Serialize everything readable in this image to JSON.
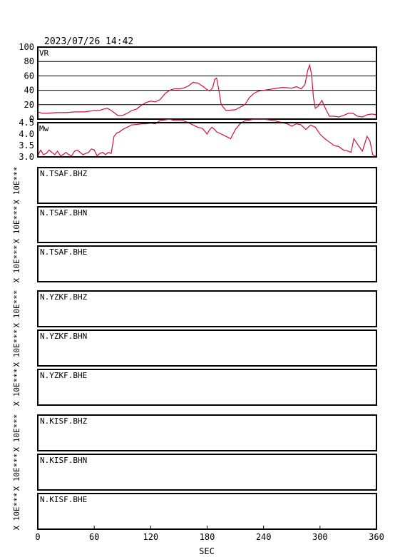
{
  "header": {
    "timestamp": "2023/07/26  14:42"
  },
  "chart_data": [
    {
      "type": "line",
      "panel": "VR",
      "label": "VR",
      "ylim": [
        0,
        100
      ],
      "yticks": [
        "0",
        "20",
        "40",
        "60",
        "80",
        "100"
      ],
      "grid": true,
      "color": "#d0103a",
      "x": [
        0,
        5,
        10,
        20,
        30,
        40,
        50,
        55,
        60,
        65,
        70,
        74,
        78,
        82,
        85,
        90,
        95,
        100,
        105,
        110,
        115,
        120,
        125,
        130,
        135,
        140,
        145,
        150,
        155,
        160,
        165,
        170,
        175,
        180,
        183,
        186,
        188,
        190,
        192,
        195,
        200,
        210,
        220,
        225,
        230,
        235,
        240,
        250,
        260,
        270,
        275,
        280,
        284,
        287,
        289,
        291,
        293,
        295,
        298,
        302,
        306,
        310,
        315,
        320,
        325,
        330,
        335,
        340,
        345,
        350,
        355,
        360
      ],
      "values": [
        10,
        8,
        8,
        9,
        9,
        10,
        10,
        11,
        12,
        12,
        14,
        15,
        12,
        8,
        5,
        5,
        8,
        12,
        14,
        19,
        23,
        25,
        24,
        27,
        35,
        40,
        42,
        42,
        43,
        46,
        51,
        50,
        46,
        41,
        39,
        44,
        55,
        57,
        44,
        20,
        12,
        13,
        20,
        30,
        36,
        39,
        40,
        42,
        44,
        43,
        45,
        42,
        48,
        68,
        75,
        62,
        30,
        15,
        18,
        26,
        14,
        4,
        4,
        3,
        5,
        8,
        8,
        4,
        3,
        6,
        7,
        6
      ]
    },
    {
      "type": "line",
      "panel": "Mw",
      "label": "Mw",
      "ylim": [
        3.0,
        4.5
      ],
      "yticks": [
        "3.0",
        "3.5",
        "4.0",
        "4.5"
      ],
      "grid": false,
      "color": "#d0103a",
      "x": [
        0,
        3,
        6,
        9,
        12,
        15,
        18,
        21,
        24,
        27,
        30,
        33,
        36,
        39,
        42,
        45,
        48,
        51,
        54,
        57,
        60,
        63,
        66,
        69,
        72,
        75,
        78,
        81,
        84,
        87,
        90,
        95,
        100,
        105,
        110,
        115,
        120,
        125,
        130,
        135,
        140,
        145,
        150,
        155,
        160,
        165,
        170,
        175,
        178,
        180,
        182,
        185,
        188,
        190,
        195,
        200,
        205,
        210,
        215,
        220,
        230,
        240,
        250,
        260,
        265,
        270,
        275,
        280,
        285,
        290,
        295,
        300,
        305,
        310,
        315,
        320,
        325,
        330,
        333,
        336,
        340,
        345,
        350,
        353,
        356,
        360
      ],
      "values": [
        3.05,
        3.3,
        3.1,
        3.15,
        3.3,
        3.2,
        3.1,
        3.25,
        3.05,
        3.1,
        3.2,
        3.1,
        3.05,
        3.25,
        3.3,
        3.2,
        3.1,
        3.15,
        3.2,
        3.35,
        3.3,
        3.05,
        3.15,
        3.2,
        3.1,
        3.2,
        3.15,
        3.9,
        4.05,
        4.1,
        4.2,
        4.3,
        4.4,
        4.42,
        4.45,
        4.45,
        4.48,
        4.45,
        4.6,
        4.62,
        4.65,
        4.6,
        4.6,
        4.58,
        4.5,
        4.4,
        4.3,
        4.25,
        4.1,
        4.0,
        4.15,
        4.3,
        4.2,
        4.1,
        4.0,
        3.9,
        3.8,
        4.2,
        4.45,
        4.58,
        4.65,
        4.65,
        4.6,
        4.5,
        4.45,
        4.35,
        4.45,
        4.4,
        4.2,
        4.4,
        4.3,
        4.0,
        3.8,
        3.65,
        3.5,
        3.45,
        3.3,
        3.25,
        3.2,
        3.8,
        3.55,
        3.25,
        3.9,
        3.7,
        3.1,
        3.0
      ]
    }
  ],
  "xaxis": {
    "label": "SEC",
    "xlim": [
      0,
      360
    ],
    "ticks": [
      "0",
      "60",
      "120",
      "180",
      "240",
      "300",
      "360"
    ]
  },
  "stations": [
    {
      "name": "N.TSAF.BHZ",
      "ylabel": "X 10E***"
    },
    {
      "name": "N.TSAF.BHN",
      "ylabel": "X 10E***"
    },
    {
      "name": "N.TSAF.BHE",
      "ylabel": "X 10E***"
    },
    {
      "name": "N.YZKF.BHZ",
      "ylabel": "X 10E***"
    },
    {
      "name": "N.YZKF.BHN",
      "ylabel": "X 10E***"
    },
    {
      "name": "N.YZKF.BHE",
      "ylabel": "X 10E***"
    },
    {
      "name": "N.KISF.BHZ",
      "ylabel": "X 10E***"
    },
    {
      "name": "N.KISF.BHN",
      "ylabel": "X 10E***"
    },
    {
      "name": "N.KISF.BHE",
      "ylabel": "X 10E***"
    }
  ]
}
